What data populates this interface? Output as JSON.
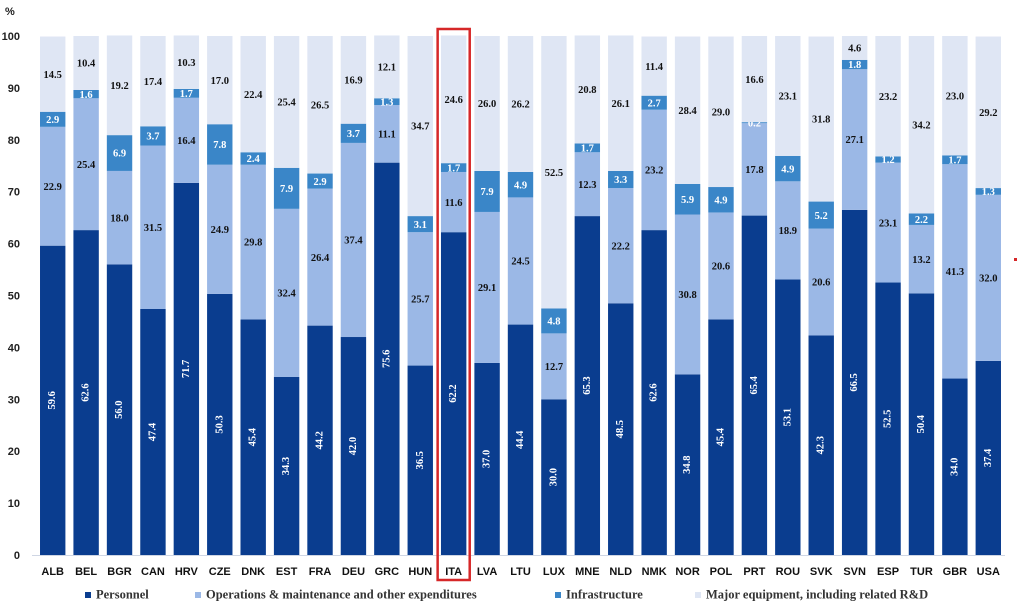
{
  "chart_data": {
    "type": "bar",
    "stacked": true,
    "ylabel": "%",
    "ylim": [
      0,
      100
    ],
    "yticks": [
      0,
      10,
      20,
      30,
      40,
      50,
      60,
      70,
      80,
      90,
      100
    ],
    "categories": [
      "ALB",
      "BEL",
      "BGR",
      "CAN",
      "HRV",
      "CZE",
      "DNK",
      "EST",
      "FRA",
      "DEU",
      "GRC",
      "HUN",
      "ITA",
      "LVA",
      "LTU",
      "LUX",
      "MNE",
      "NLD",
      "NMK",
      "NOR",
      "POL",
      "PRT",
      "ROU",
      "SVK",
      "SVN",
      "ESP",
      "TUR",
      "GBR",
      "USA"
    ],
    "highlight": "ITA",
    "highlight_color": "#d62728",
    "series": [
      {
        "name": "Personnel",
        "color": "#0a3d8f",
        "label_color": "#ffffff",
        "values": [
          59.6,
          62.6,
          56.0,
          47.4,
          71.7,
          50.3,
          45.4,
          34.3,
          44.2,
          42.0,
          75.6,
          36.5,
          62.2,
          37.0,
          44.4,
          30.0,
          65.3,
          48.5,
          62.6,
          34.8,
          45.4,
          65.4,
          53.1,
          42.3,
          66.5,
          52.5,
          50.4,
          34.0,
          37.4
        ]
      },
      {
        "name": "Operations & maintenance and other expenditures",
        "color": "#9bb8e6",
        "label_color": "#111111",
        "values": [
          22.9,
          25.4,
          18.0,
          31.5,
          16.4,
          24.9,
          29.8,
          32.4,
          26.4,
          37.4,
          11.1,
          25.7,
          11.6,
          29.1,
          24.5,
          12.7,
          12.3,
          22.2,
          23.2,
          30.8,
          20.6,
          17.8,
          18.9,
          20.6,
          27.1,
          23.1,
          13.2,
          41.3,
          32.0
        ]
      },
      {
        "name": "Infrastructure",
        "color": "#3a86c8",
        "label_color": "#ffffff",
        "values": [
          2.9,
          1.6,
          6.9,
          3.7,
          1.7,
          7.8,
          2.4,
          7.9,
          2.9,
          3.7,
          1.3,
          3.1,
          1.7,
          7.9,
          4.9,
          4.8,
          1.7,
          3.3,
          2.7,
          5.9,
          4.9,
          0.2,
          4.9,
          5.2,
          1.8,
          1.2,
          2.2,
          1.7,
          1.3
        ]
      },
      {
        "name": "Major equipment, including related R&D",
        "color": "#dfe6f4",
        "label_color": "#111111",
        "values": [
          14.5,
          10.4,
          19.2,
          17.4,
          10.3,
          17.0,
          22.4,
          25.4,
          26.5,
          16.9,
          12.1,
          34.7,
          24.6,
          26.0,
          26.2,
          52.5,
          20.8,
          26.1,
          11.4,
          28.4,
          29.0,
          16.6,
          23.1,
          31.8,
          4.6,
          23.2,
          34.2,
          23.0,
          29.2
        ]
      }
    ],
    "grid": false,
    "legend_position": "bottom"
  }
}
